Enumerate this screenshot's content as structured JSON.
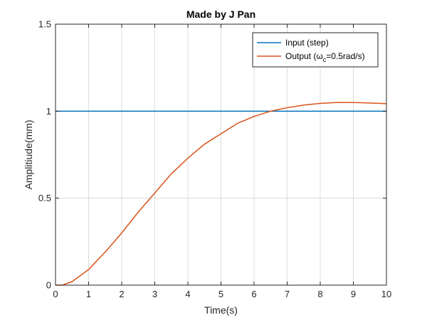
{
  "chart_data": {
    "type": "line",
    "title": "Made by J Pan",
    "xlabel": "Time(s)",
    "ylabel": "Amplitiude(mm)",
    "xlim": [
      0,
      10
    ],
    "ylim": [
      0,
      1.5
    ],
    "xticks": [
      0,
      1,
      2,
      3,
      4,
      5,
      6,
      7,
      8,
      9,
      10
    ],
    "xtick_labels": [
      "0",
      "1",
      "2",
      "3",
      "4",
      "5",
      "6",
      "7",
      "8",
      "9",
      "10"
    ],
    "yticks": [
      0,
      0.5,
      1,
      1.5
    ],
    "ytick_labels": [
      "0",
      "0.5",
      "1",
      "1.5"
    ],
    "grid": true,
    "legend_position": "top-right",
    "series": [
      {
        "name": "Input (step)",
        "legend_prefix": "Input (step)",
        "legend_sub": "",
        "legend_suffix": "",
        "color": "#0072BD",
        "x": [
          0,
          10
        ],
        "y": [
          1,
          1
        ]
      },
      {
        "name": "Output (ωc=0.5rad/s)",
        "legend_prefix": "Output (ω",
        "legend_sub": "c",
        "legend_suffix": "=0.5rad/s)",
        "color": "#D95319",
        "x": [
          0,
          0.2,
          0.5,
          1,
          1.5,
          2,
          2.5,
          3,
          3.5,
          4,
          4.5,
          5,
          5.5,
          6,
          6.5,
          7,
          7.5,
          8,
          8.5,
          8.8,
          9,
          9.5,
          10
        ],
        "y": [
          0,
          0,
          0.02,
          0.09,
          0.19,
          0.3,
          0.42,
          0.53,
          0.64,
          0.73,
          0.81,
          0.87,
          0.93,
          0.97,
          1.0,
          1.02,
          1.035,
          1.045,
          1.05,
          1.05,
          1.05,
          1.047,
          1.043
        ]
      }
    ]
  }
}
